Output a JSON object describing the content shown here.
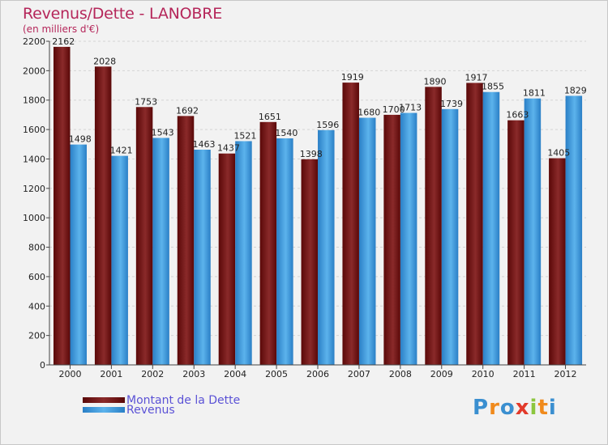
{
  "chart_data": {
    "type": "bar",
    "title": "Revenus/Dette - LANOBRE",
    "subtitle": "(en milliers d'€)",
    "categories": [
      "2000",
      "2001",
      "2002",
      "2003",
      "2004",
      "2005",
      "2006",
      "2007",
      "2008",
      "2009",
      "2010",
      "2011",
      "2012"
    ],
    "series": [
      {
        "name": "Montant de la Dette",
        "color": "#7a1818",
        "values": [
          2162,
          2028,
          1753,
          1692,
          1437,
          1651,
          1398,
          1919,
          1700,
          1890,
          1917,
          1663,
          1405
        ],
        "labels": [
          "2162",
          "2028",
          "1753",
          "1692",
          "1437",
          "1651",
          "1398",
          "1919",
          "1700",
          "1890",
          "1917",
          "1663",
          "1405"
        ]
      },
      {
        "name": "Revenus",
        "color": "#3d98dc",
        "values": [
          1498,
          1421,
          1543,
          1463,
          1521,
          1540,
          1596,
          1680,
          1713,
          1739,
          1855,
          1811,
          1829
        ],
        "labels": [
          "1498",
          "1421",
          "1543",
          "1463",
          "1521",
          "1540",
          "1596",
          "1680",
          "1713",
          "1739",
          "1855",
          "1811",
          "1829"
        ]
      }
    ],
    "ylim": [
      0,
      2200
    ],
    "yticks": [
      "0",
      "200",
      "400",
      "600",
      "800",
      "1000",
      "1200",
      "1400",
      "1600",
      "1800",
      "2000",
      "2200"
    ],
    "ytick_values": [
      0,
      200,
      400,
      600,
      800,
      1000,
      1200,
      1400,
      1600,
      1800,
      2000,
      2200
    ],
    "grid": true,
    "legend_position": "bottom-left"
  },
  "logo": {
    "letters": [
      "P",
      "r",
      "o",
      "x",
      "i",
      "t",
      "i"
    ],
    "colors": [
      "#3a8fd0",
      "#f08a1c",
      "#3a8fd0",
      "#e23a2a",
      "#8cc63f",
      "#f08a1c",
      "#3a8fd0"
    ]
  }
}
